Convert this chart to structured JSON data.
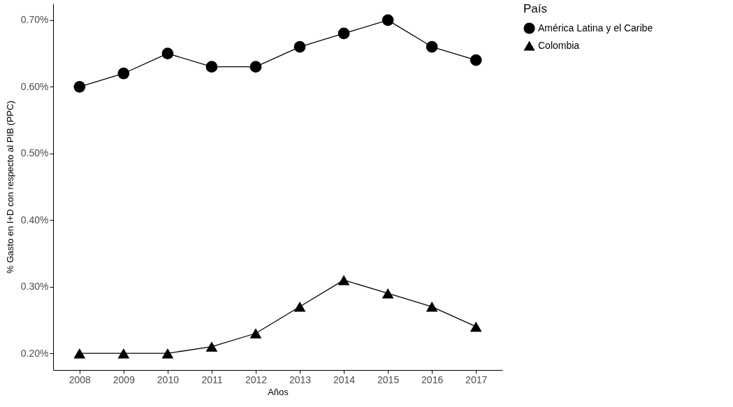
{
  "chart_data": {
    "type": "line",
    "xlabel": "Años",
    "ylabel": "% Gasto en I+D con respecto al PIB (PPC)",
    "legend_title": "País",
    "legend": "right",
    "grid": false,
    "categories": [
      "2008",
      "2009",
      "2010",
      "2011",
      "2012",
      "2013",
      "2014",
      "2015",
      "2016",
      "2017"
    ],
    "ylim": [
      0.175,
      0.725
    ],
    "yticks": [
      {
        "value": 0.2,
        "label": "0.20%"
      },
      {
        "value": 0.3,
        "label": "0.30%"
      },
      {
        "value": 0.4,
        "label": "0.40%"
      },
      {
        "value": 0.5,
        "label": "0.50%"
      },
      {
        "value": 0.6,
        "label": "0.60%"
      },
      {
        "value": 0.7,
        "label": "0.70%"
      }
    ],
    "series": [
      {
        "name": "América Latina y el Caribe",
        "color": "#000000",
        "marker": "circle",
        "values": [
          0.6,
          0.62,
          0.65,
          0.63,
          0.63,
          0.66,
          0.68,
          0.7,
          0.66,
          0.64
        ]
      },
      {
        "name": "Colombia",
        "color": "#000000",
        "marker": "triangle",
        "values": [
          0.2,
          0.2,
          0.2,
          0.21,
          0.23,
          0.27,
          0.31,
          0.29,
          0.27,
          0.24
        ]
      }
    ]
  }
}
